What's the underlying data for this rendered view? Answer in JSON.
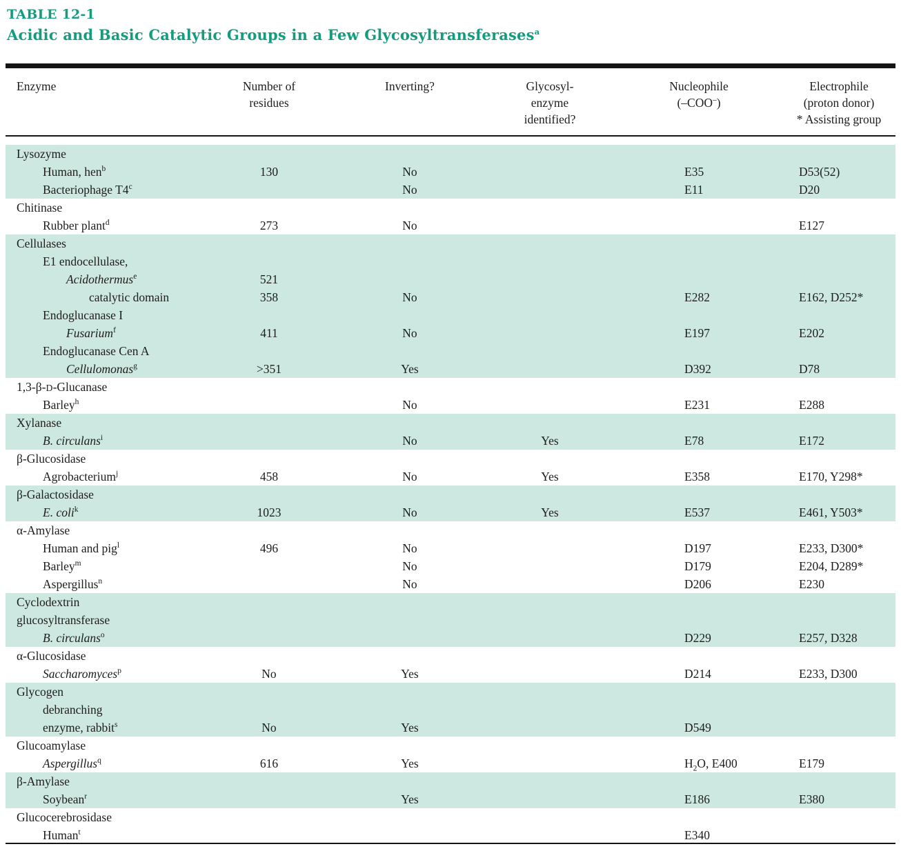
{
  "colors": {
    "accent": "#149c7e",
    "row_shade": "#cde8e0",
    "rule": "#141414",
    "text": "#1d1d1b"
  },
  "title": {
    "tag": "TABLE 12-1",
    "heading": "Acidic and Basic Catalytic Groups in a Few Glycosyltransferases^a^"
  },
  "header": {
    "columns": [
      {
        "label": "Enzyme"
      },
      {
        "label": "Number of\nresidues"
      },
      {
        "label": "Inverting?"
      },
      {
        "label": "Glycosyl-\nenzyme\nidentified?"
      },
      {
        "label": "Nucleophile\n(–COO^–^)"
      },
      {
        "label": "Electrophile\n(proton donor)\n* Assisting group"
      }
    ]
  },
  "table": {
    "value_columns": [
      "residues",
      "inverting",
      "glycosyl_enzyme_identified",
      "nucleophile",
      "electrophile"
    ],
    "sections": [
      {
        "shaded": true,
        "rows": [
          {
            "label": "Lysozyme",
            "indent": 0,
            "italic": false,
            "sup": "",
            "values": [
              "",
              "",
              "",
              "",
              ""
            ]
          },
          {
            "label": "Human, hen",
            "indent": 1,
            "italic": false,
            "sup": "b",
            "values": [
              "130",
              "No",
              "",
              "E35",
              "D53(52)"
            ]
          },
          {
            "label": "Bacteriophage T4",
            "indent": 1,
            "italic": false,
            "sup": "c",
            "values": [
              "",
              "No",
              "",
              "E11",
              "D20"
            ]
          }
        ]
      },
      {
        "shaded": false,
        "rows": [
          {
            "label": "Chitinase",
            "indent": 0,
            "italic": false,
            "sup": "",
            "values": [
              "",
              "",
              "",
              "",
              ""
            ]
          },
          {
            "label": "Rubber plant",
            "indent": 1,
            "italic": false,
            "sup": "d",
            "values": [
              "273",
              "No",
              "",
              "",
              "E127"
            ]
          }
        ]
      },
      {
        "shaded": true,
        "rows": [
          {
            "label": "Cellulases",
            "indent": 0,
            "italic": false,
            "sup": "",
            "values": [
              "",
              "",
              "",
              "",
              ""
            ]
          },
          {
            "label": "E1 endocellulase,",
            "indent": 1,
            "italic": false,
            "sup": "",
            "values": [
              "",
              "",
              "",
              "",
              ""
            ]
          },
          {
            "label": "Acidothermus",
            "indent": 2,
            "italic": true,
            "sup": "e",
            "values": [
              "521",
              "",
              "",
              "",
              ""
            ]
          },
          {
            "label": "catalytic domain",
            "indent": 3,
            "italic": false,
            "sup": "",
            "values": [
              "358",
              "No",
              "",
              "E282",
              "E162, D252*"
            ]
          },
          {
            "label": "Endoglucanase I",
            "indent": 1,
            "italic": false,
            "sup": "",
            "values": [
              "",
              "",
              "",
              "",
              ""
            ]
          },
          {
            "label": "Fusarium",
            "indent": 2,
            "italic": true,
            "sup": "f",
            "values": [
              "411",
              "No",
              "",
              "E197",
              "E202"
            ]
          },
          {
            "label": "Endoglucanase Cen A",
            "indent": 1,
            "italic": false,
            "sup": "",
            "values": [
              "",
              "",
              "",
              "",
              ""
            ]
          },
          {
            "label": "Cellulomonas",
            "indent": 2,
            "italic": true,
            "sup": "g",
            "values": [
              ">351",
              "Yes",
              "",
              "D392",
              "D78"
            ]
          }
        ]
      },
      {
        "shaded": false,
        "rows": [
          {
            "label": "1,3-β-{sc:D}-Glucanase",
            "indent": 0,
            "italic": false,
            "sup": "",
            "values": [
              "",
              "",
              "",
              "",
              ""
            ]
          },
          {
            "label": "Barley",
            "indent": 1,
            "italic": false,
            "sup": "h",
            "values": [
              "",
              "No",
              "",
              "E231",
              "E288"
            ]
          }
        ]
      },
      {
        "shaded": true,
        "rows": [
          {
            "label": "Xylanase",
            "indent": 0,
            "italic": false,
            "sup": "",
            "values": [
              "",
              "",
              "",
              "",
              ""
            ]
          },
          {
            "label": "B. circulans",
            "indent": 1,
            "italic": true,
            "sup": "i",
            "values": [
              "",
              "No",
              "Yes",
              "E78",
              "E172"
            ]
          }
        ]
      },
      {
        "shaded": false,
        "rows": [
          {
            "label": "β-Glucosidase",
            "indent": 0,
            "italic": false,
            "sup": "",
            "values": [
              "",
              "",
              "",
              "",
              ""
            ]
          },
          {
            "label": "Agrobacterium",
            "indent": 1,
            "italic": false,
            "sup": "j",
            "values": [
              "458",
              "No",
              "Yes",
              "E358",
              "E170, Y298*"
            ]
          }
        ]
      },
      {
        "shaded": true,
        "rows": [
          {
            "label": "β-Galactosidase",
            "indent": 0,
            "italic": false,
            "sup": "",
            "values": [
              "",
              "",
              "",
              "",
              ""
            ]
          },
          {
            "label": "E. coli",
            "indent": 1,
            "italic": true,
            "sup": "k",
            "values": [
              "1023",
              "No",
              "Yes",
              "E537",
              "E461, Y503*"
            ]
          }
        ]
      },
      {
        "shaded": false,
        "rows": [
          {
            "label": "α-Amylase",
            "indent": 0,
            "italic": false,
            "sup": "",
            "values": [
              "",
              "",
              "",
              "",
              ""
            ]
          },
          {
            "label": "Human and pig",
            "indent": 1,
            "italic": false,
            "sup": "l",
            "values": [
              "496",
              "No",
              "",
              "D197",
              "E233, D300*"
            ]
          },
          {
            "label": "Barley",
            "indent": 1,
            "italic": false,
            "sup": "m",
            "values": [
              "",
              "No",
              "",
              "D179",
              "E204, D289*"
            ]
          },
          {
            "label": "Aspergillus",
            "indent": 1,
            "italic": false,
            "sup": "n",
            "values": [
              "",
              "No",
              "",
              "D206",
              "E230"
            ]
          }
        ]
      },
      {
        "shaded": true,
        "rows": [
          {
            "label": "Cyclodextrin",
            "indent": 0,
            "italic": false,
            "sup": "",
            "values": [
              "",
              "",
              "",
              "",
              ""
            ]
          },
          {
            "label": "glucosyltransferase",
            "indent": 0,
            "italic": false,
            "sup": "",
            "values": [
              "",
              "",
              "",
              "",
              ""
            ]
          },
          {
            "label": "B. circulans",
            "indent": 1,
            "italic": true,
            "sup": "o",
            "values": [
              "",
              "",
              "",
              "D229",
              "E257, D328"
            ]
          }
        ]
      },
      {
        "shaded": false,
        "rows": [
          {
            "label": "α-Glucosidase",
            "indent": 0,
            "italic": false,
            "sup": "",
            "values": [
              "",
              "",
              "",
              "",
              ""
            ]
          },
          {
            "label": "Saccharomyces",
            "indent": 1,
            "italic": true,
            "sup": "p",
            "values": [
              "No",
              "Yes",
              "",
              "D214",
              "E233, D300"
            ]
          }
        ]
      },
      {
        "shaded": true,
        "rows": [
          {
            "label": "Glycogen",
            "indent": 0,
            "italic": false,
            "sup": "",
            "values": [
              "",
              "",
              "",
              "",
              ""
            ]
          },
          {
            "label": "debranching",
            "indent": 1,
            "italic": false,
            "sup": "",
            "values": [
              "",
              "",
              "",
              "",
              ""
            ]
          },
          {
            "label": "enzyme, rabbit",
            "indent": 1,
            "italic": false,
            "sup": "s",
            "values": [
              "No",
              "Yes",
              "",
              "D549",
              ""
            ]
          }
        ]
      },
      {
        "shaded": false,
        "rows": [
          {
            "label": "Glucoamylase",
            "indent": 0,
            "italic": false,
            "sup": "",
            "values": [
              "",
              "",
              "",
              "",
              ""
            ]
          },
          {
            "label": "Aspergillus",
            "indent": 1,
            "italic": true,
            "sup": "q",
            "values": [
              "616",
              "Yes",
              "",
              "H~2~O, E400",
              "E179"
            ]
          }
        ]
      },
      {
        "shaded": true,
        "rows": [
          {
            "label": "β-Amylase",
            "indent": 0,
            "italic": false,
            "sup": "",
            "values": [
              "",
              "",
              "",
              "",
              ""
            ]
          },
          {
            "label": "Soybean",
            "indent": 1,
            "italic": false,
            "sup": "r",
            "values": [
              "",
              "Yes",
              "",
              "E186",
              "E380"
            ]
          }
        ]
      },
      {
        "shaded": false,
        "rows": [
          {
            "label": "Glucocerebrosidase",
            "indent": 0,
            "italic": false,
            "sup": "",
            "values": [
              "",
              "",
              "",
              "",
              ""
            ]
          },
          {
            "label": "Human",
            "indent": 1,
            "italic": false,
            "sup": "t",
            "values": [
              "",
              "",
              "",
              "E340",
              ""
            ]
          }
        ]
      }
    ]
  }
}
